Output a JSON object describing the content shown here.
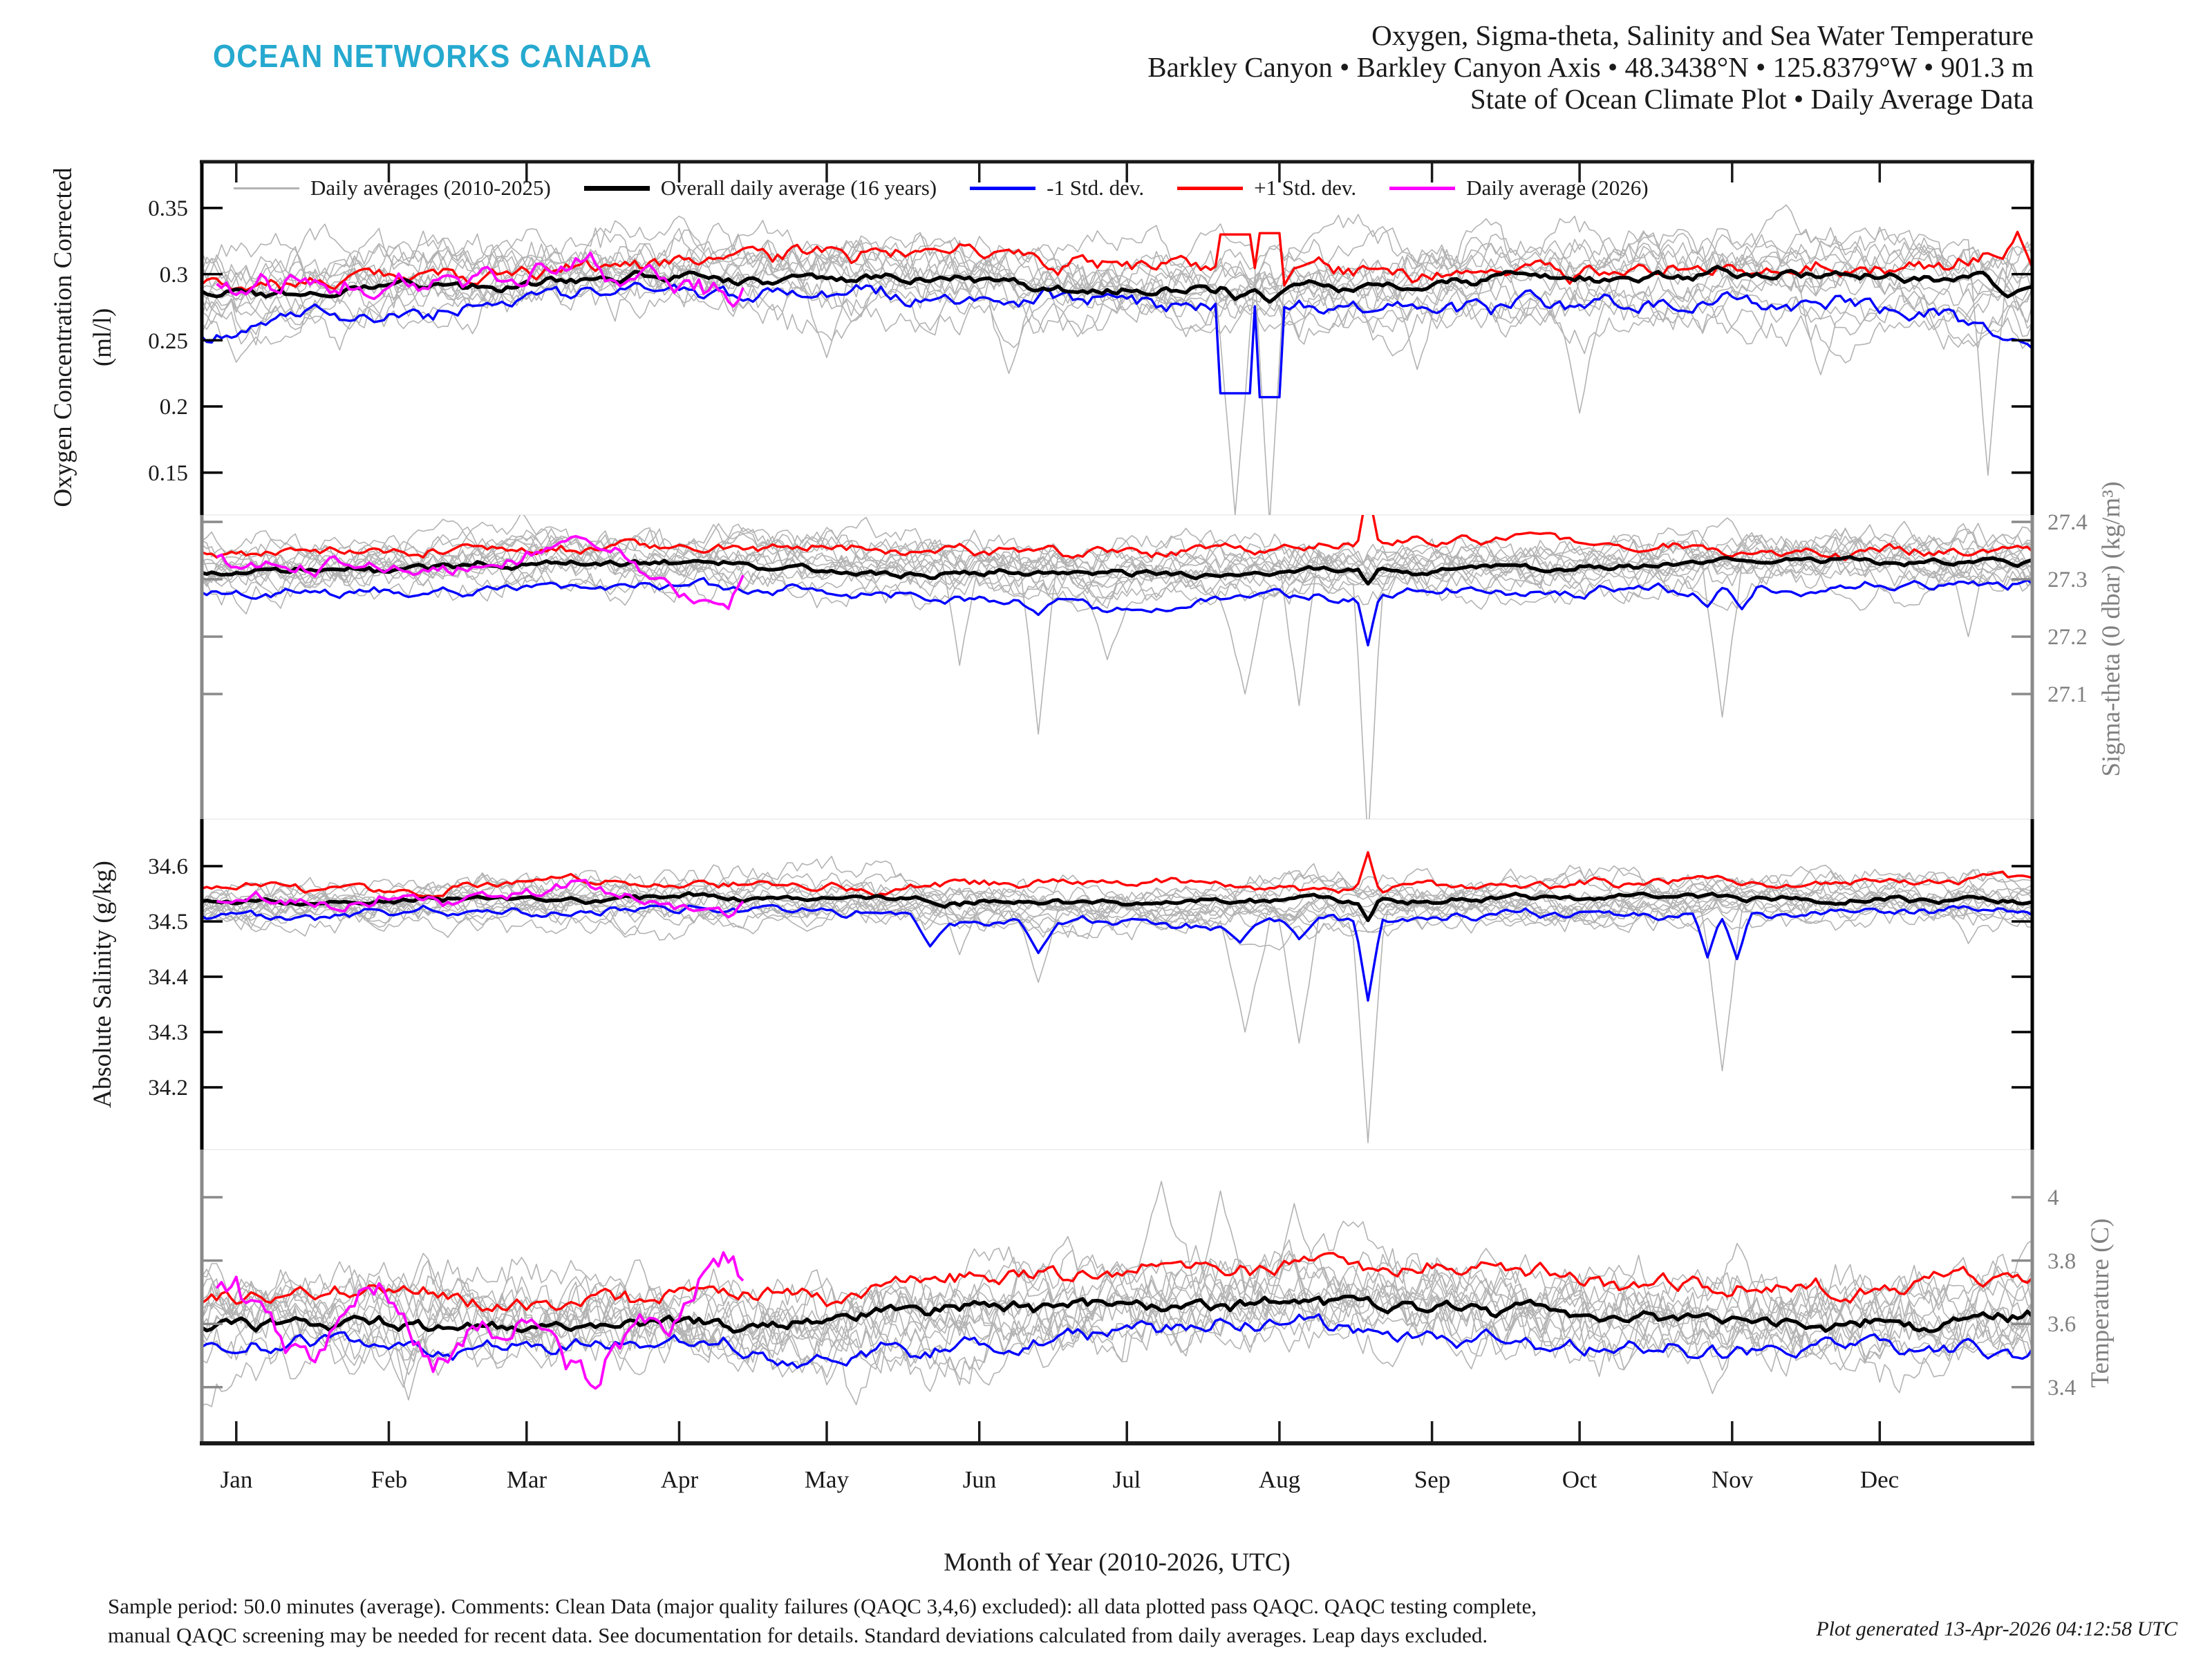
{
  "logo": "OCEAN NETWORKS CANADA",
  "title": {
    "line1": "Oxygen, Sigma-theta, Salinity and Sea Water Temperature",
    "line2": "Barkley Canyon • Barkley Canyon Axis • 48.3438°N • 125.8379°W • 901.3 m",
    "line3": "State of Ocean Climate Plot • Daily Average Data"
  },
  "colors": {
    "logo": "#26a9cf",
    "gray_line": "#b3b3b3",
    "mean": "#000000",
    "minus_std": "#0000ff",
    "plus_std": "#ff0000",
    "y2026": "#ff00ff",
    "axis_gray": "#808080",
    "text": "#1a1a1a"
  },
  "legend": [
    {
      "label": "Daily averages (2010-2025)",
      "color": "#b3b3b3",
      "weight": 3
    },
    {
      "label": "Overall daily average (16 years)",
      "color": "#000000",
      "weight": 7
    },
    {
      "label": "-1 Std. dev.",
      "color": "#0000ff",
      "weight": 5
    },
    {
      "label": "+1 Std. dev.",
      "color": "#ff0000",
      "weight": 5
    },
    {
      "label": "Daily average (2026)",
      "color": "#ff00ff",
      "weight": 5
    }
  ],
  "footer": {
    "line1": "Sample period: 50.0 minutes (average). Comments: Clean Data (major quality failures (QAQC 3,4,6) excluded): all data plotted pass QAQC. QAQC testing complete,",
    "line2": "manual QAQC screening may be needed for recent data. See documentation for details. Standard deviations calculated from daily averages. Leap days excluded.",
    "generated": "Plot generated 13-Apr-2026 04:12:58 UTC"
  },
  "chart_data": {
    "type": "line",
    "x": {
      "label": "Month of Year (2010-2026, UTC)",
      "months": [
        "Jan",
        "Feb",
        "Mar",
        "Apr",
        "May",
        "Jun",
        "Jul",
        "Aug",
        "Sep",
        "Oct",
        "Nov",
        "Dec"
      ],
      "month_start_days": [
        0,
        31,
        59,
        90,
        120,
        151,
        181,
        212,
        243,
        273,
        304,
        334
      ],
      "days_per_year": 365
    },
    "panels": [
      {
        "id": "oxygen",
        "ylabel": [
          "Oxygen Concentration Corrected",
          "(ml/l)"
        ],
        "axis_side": "left",
        "axis_color": "#000000",
        "ylim": [
          0.118,
          0.386
        ],
        "tick_values": [
          0.35,
          0.3,
          0.25,
          0.2,
          0.15
        ],
        "tick_labels": [
          "0.35",
          "0.3",
          "0.25",
          "0.2",
          "0.15"
        ],
        "gray_line_count": 14,
        "series": {
          "mean_monthly": [
            0.286,
            0.29,
            0.296,
            0.299,
            0.297,
            0.296,
            0.291,
            0.289,
            0.292,
            0.295,
            0.296,
            0.295,
            0.287
          ],
          "plus_monthly": [
            0.299,
            0.302,
            0.305,
            0.306,
            0.305,
            0.307,
            0.303,
            0.302,
            0.305,
            0.306,
            0.308,
            0.309,
            0.311
          ],
          "minus_monthly": [
            0.267,
            0.274,
            0.281,
            0.285,
            0.284,
            0.282,
            0.276,
            0.272,
            0.276,
            0.28,
            0.281,
            0.28,
            0.256
          ],
          "y2026": {
            "days": [
              0,
              10,
              20,
              30,
              40,
              50,
              60,
              70,
              80,
              90,
              100,
              103
            ],
            "values": [
              0.297,
              0.295,
              0.284,
              0.299,
              0.285,
              0.292,
              0.3,
              0.316,
              0.297,
              0.285,
              0.273,
              0.281
            ]
          }
        },
        "noise": {
          "mean": 0.0025,
          "band": 0.0042,
          "gray": 0.0095,
          "y2026": 0.0062,
          "gray_offset": 0.02
        },
        "spikes": {
          "mean": [
            {
              "day": 203,
              "value": 0.281,
              "width": 5
            },
            {
              "day": 210,
              "value": 0.279,
              "width": 5
            },
            {
              "day": 360,
              "value": 0.283,
              "width": 9
            }
          ],
          "plus": [
            {
              "day": 203,
              "value": 0.33,
              "width": 6,
              "shape": "box"
            },
            {
              "day": 210,
              "value": 0.331,
              "width": 5,
              "shape": "box"
            },
            {
              "day": 362,
              "value": 0.332,
              "width": 5
            }
          ],
          "minus": [
            {
              "day": 203,
              "value": 0.21,
              "width": 6,
              "shape": "box"
            },
            {
              "day": 210,
              "value": 0.207,
              "width": 5,
              "shape": "box"
            },
            {
              "day": 361,
              "value": 0.251,
              "width": 9
            }
          ],
          "gray": [
            {
              "day": 120,
              "value": 0.237,
              "width": 8
            },
            {
              "day": 157,
              "value": 0.225,
              "width": 8
            },
            {
              "day": 203,
              "value": 0.118,
              "width": 7
            },
            {
              "day": 210,
              "value": 0.112,
              "width": 6
            },
            {
              "day": 240,
              "value": 0.228,
              "width": 9
            },
            {
              "day": 273,
              "value": 0.195,
              "width": 7
            },
            {
              "day": 322,
              "value": 0.224,
              "width": 8
            },
            {
              "day": 356,
              "value": 0.148,
              "width": 7
            }
          ]
        }
      },
      {
        "id": "sigma-theta",
        "ylabel": [
          "Sigma-theta (0 dbar) (kg/m³)"
        ],
        "axis_side": "right",
        "axis_color": "#8a8a8a",
        "ylim": [
          26.882,
          27.412
        ],
        "tick_values": [
          27.4,
          27.3,
          27.2,
          27.1
        ],
        "tick_labels": [
          "27.4",
          "27.3",
          "27.2",
          "27.1"
        ],
        "gray_line_count": 14,
        "series": {
          "mean_monthly": [
            27.31,
            27.315,
            27.325,
            27.33,
            27.325,
            27.315,
            27.305,
            27.31,
            27.315,
            27.32,
            27.325,
            27.33,
            27.325
          ],
          "plus_monthly": [
            27.345,
            27.35,
            27.358,
            27.365,
            27.36,
            27.355,
            27.35,
            27.358,
            27.352,
            27.352,
            27.356,
            27.362,
            27.355
          ],
          "minus_monthly": [
            27.272,
            27.28,
            27.292,
            27.295,
            27.288,
            27.262,
            27.252,
            27.268,
            27.278,
            27.288,
            27.288,
            27.295,
            27.29
          ],
          "y2026": {
            "days": [
              0,
              10,
              20,
              30,
              40,
              50,
              60,
              70,
              80,
              90,
              100,
              103
            ],
            "values": [
              27.315,
              27.3,
              27.33,
              27.305,
              27.315,
              27.31,
              27.335,
              27.355,
              27.32,
              27.28,
              27.25,
              27.295
            ]
          }
        },
        "noise": {
          "mean": 0.0042,
          "band": 0.006,
          "gray": 0.017,
          "y2026": 0.009,
          "gray_offset": 0.035
        },
        "spikes": {
          "mean": [
            {
              "day": 230,
              "value": 27.292,
              "width": 4
            }
          ],
          "plus": [
            {
              "day": 230,
              "value": 27.462,
              "width": 4
            }
          ],
          "minus": [
            {
              "day": 141,
              "value": 27.262,
              "width": 7
            },
            {
              "day": 163,
              "value": 27.238,
              "width": 7
            },
            {
              "day": 204,
              "value": 27.272,
              "width": 6
            },
            {
              "day": 230,
              "value": 27.185,
              "width": 4
            },
            {
              "day": 299,
              "value": 27.252,
              "width": 5
            },
            {
              "day": 306,
              "value": 27.248,
              "width": 5
            }
          ],
          "gray": [
            {
              "day": 147,
              "value": 27.15,
              "width": 8
            },
            {
              "day": 163,
              "value": 27.03,
              "width": 7
            },
            {
              "day": 177,
              "value": 27.16,
              "width": 7
            },
            {
              "day": 205,
              "value": 27.1,
              "width": 8
            },
            {
              "day": 216,
              "value": 27.08,
              "width": 7
            },
            {
              "day": 230,
              "value": 26.84,
              "width": 5
            },
            {
              "day": 302,
              "value": 27.06,
              "width": 8
            },
            {
              "day": 352,
              "value": 27.2,
              "width": 7
            }
          ]
        }
      },
      {
        "id": "salinity",
        "ylabel": [
          "Absolute Salinity (g/kg)"
        ],
        "axis_side": "left",
        "axis_color": "#000000",
        "ylim": [
          34.0875,
          34.685
        ],
        "tick_values": [
          34.6,
          34.5,
          34.4,
          34.3,
          34.2
        ],
        "tick_labels": [
          "34.6",
          "34.5",
          "34.4",
          "34.3",
          "34.2"
        ],
        "gray_line_count": 14,
        "series": {
          "mean_monthly": [
            34.535,
            34.537,
            34.543,
            34.545,
            34.54,
            34.536,
            34.532,
            34.536,
            34.538,
            34.54,
            34.54,
            34.541,
            34.538
          ],
          "plus_monthly": [
            34.558,
            34.56,
            34.566,
            34.57,
            34.565,
            34.564,
            34.56,
            34.561,
            34.56,
            34.56,
            34.562,
            34.565,
            34.562
          ],
          "minus_monthly": [
            34.508,
            34.512,
            34.518,
            34.52,
            34.512,
            34.498,
            34.492,
            34.506,
            34.512,
            34.516,
            34.512,
            34.516,
            34.512
          ],
          "y2026": {
            "days": [
              0,
              10,
              20,
              30,
              40,
              50,
              60,
              70,
              80,
              90,
              100,
              103
            ],
            "values": [
              34.54,
              34.537,
              34.528,
              34.548,
              34.53,
              34.538,
              34.545,
              34.565,
              34.545,
              34.528,
              34.506,
              34.528
            ]
          }
        },
        "noise": {
          "mean": 0.0036,
          "band": 0.0052,
          "gray": 0.014,
          "y2026": 0.008,
          "gray_offset": 0.029
        },
        "spikes": {
          "mean": [
            {
              "day": 230,
              "value": 34.502,
              "width": 4
            }
          ],
          "plus": [
            {
              "day": 230,
              "value": 34.625,
              "width": 4
            }
          ],
          "minus": [
            {
              "day": 141,
              "value": 34.455,
              "width": 7
            },
            {
              "day": 163,
              "value": 34.443,
              "width": 7
            },
            {
              "day": 204,
              "value": 34.462,
              "width": 6
            },
            {
              "day": 216,
              "value": 34.468,
              "width": 6
            },
            {
              "day": 230,
              "value": 34.357,
              "width": 5
            },
            {
              "day": 299,
              "value": 34.435,
              "width": 5
            },
            {
              "day": 305,
              "value": 34.432,
              "width": 5
            }
          ],
          "gray": [
            {
              "day": 147,
              "value": 34.44,
              "width": 8
            },
            {
              "day": 163,
              "value": 34.39,
              "width": 8
            },
            {
              "day": 205,
              "value": 34.3,
              "width": 9
            },
            {
              "day": 216,
              "value": 34.28,
              "width": 8
            },
            {
              "day": 230,
              "value": 34.1,
              "width": 6
            },
            {
              "day": 302,
              "value": 34.23,
              "width": 8
            },
            {
              "day": 352,
              "value": 34.46,
              "width": 8
            }
          ]
        }
      },
      {
        "id": "temperature",
        "ylabel": [
          "Temperature (C)"
        ],
        "axis_side": "right",
        "axis_color": "#8a8a8a",
        "ylim": [
          3.2228,
          4.1507
        ],
        "tick_values": [
          4,
          3.8,
          3.6,
          3.4
        ],
        "tick_labels": [
          "4",
          "3.8",
          "3.6",
          "3.4"
        ],
        "gray_line_count": 14,
        "series": {
          "mean_monthly": [
            3.618,
            3.61,
            3.606,
            3.614,
            3.605,
            3.64,
            3.655,
            3.672,
            3.66,
            3.628,
            3.608,
            3.6,
            3.628
          ],
          "plus_monthly": [
            3.7,
            3.695,
            3.7,
            3.705,
            3.68,
            3.745,
            3.762,
            3.782,
            3.772,
            3.732,
            3.705,
            3.695,
            3.76
          ],
          "minus_monthly": [
            3.53,
            3.52,
            3.512,
            3.512,
            3.468,
            3.53,
            3.556,
            3.572,
            3.556,
            3.526,
            3.512,
            3.505,
            3.535
          ],
          "y2026": {
            "days": [
              0,
              10,
              20,
              30,
              40,
              50,
              60,
              70,
              80,
              90,
              100,
              103
            ],
            "values": [
              3.62,
              3.5,
              3.58,
              3.7,
              3.44,
              3.58,
              3.62,
              3.39,
              3.55,
              3.62,
              3.82,
              3.74
            ]
          }
        },
        "noise": {
          "mean": 0.014,
          "band": 0.018,
          "gray": 0.052,
          "y2026": 0.038,
          "gray_offset": 0.1
        },
        "spikes": {
          "mean": [],
          "plus": [],
          "minus": [],
          "gray": [
            {
              "day": 35,
              "value": 3.36,
              "width": 10
            },
            {
              "day": 188,
              "value": 4.05,
              "width": 12
            },
            {
              "day": 200,
              "value": 4.02,
              "width": 10
            },
            {
              "day": 215,
              "value": 3.98,
              "width": 10
            },
            {
              "day": 300,
              "value": 3.38,
              "width": 10
            }
          ]
        }
      }
    ]
  }
}
